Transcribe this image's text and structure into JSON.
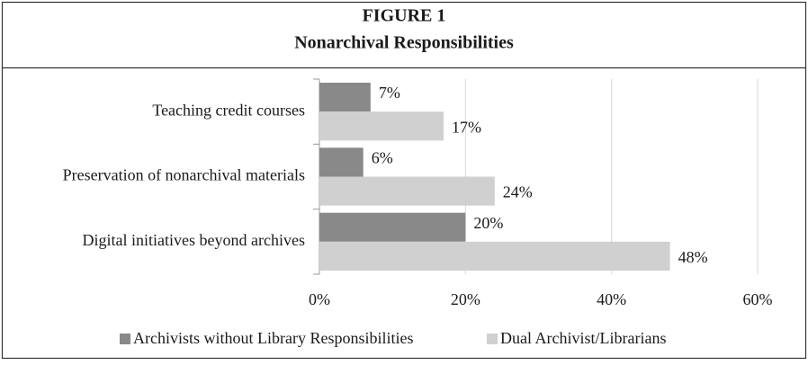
{
  "chart_data": {
    "type": "barh",
    "figure_label": "FIGURE 1",
    "title": "Nonarchival Responsibilities",
    "categories": [
      "Teaching credit courses",
      "Preservation of nonarchival materials",
      "Digital initiatives beyond archives"
    ],
    "series": [
      {
        "name": "Archivists without Library Responsibilities",
        "color": "#898989",
        "values": [
          7,
          6,
          20
        ],
        "value_labels": [
          "7%",
          "6%",
          "20%"
        ]
      },
      {
        "name": "Dual Archivist/Librarians",
        "color": "#d0d0d0",
        "values": [
          17,
          24,
          48
        ],
        "value_labels": [
          "17%",
          "24%",
          "48%"
        ]
      }
    ],
    "xlim": [
      0,
      60
    ],
    "xticks": [
      {
        "value": 0,
        "label": "0%"
      },
      {
        "value": 20,
        "label": "20%"
      },
      {
        "value": 40,
        "label": "40%"
      },
      {
        "value": 60,
        "label": "60%"
      }
    ],
    "grid": true,
    "legend": "bottom"
  }
}
